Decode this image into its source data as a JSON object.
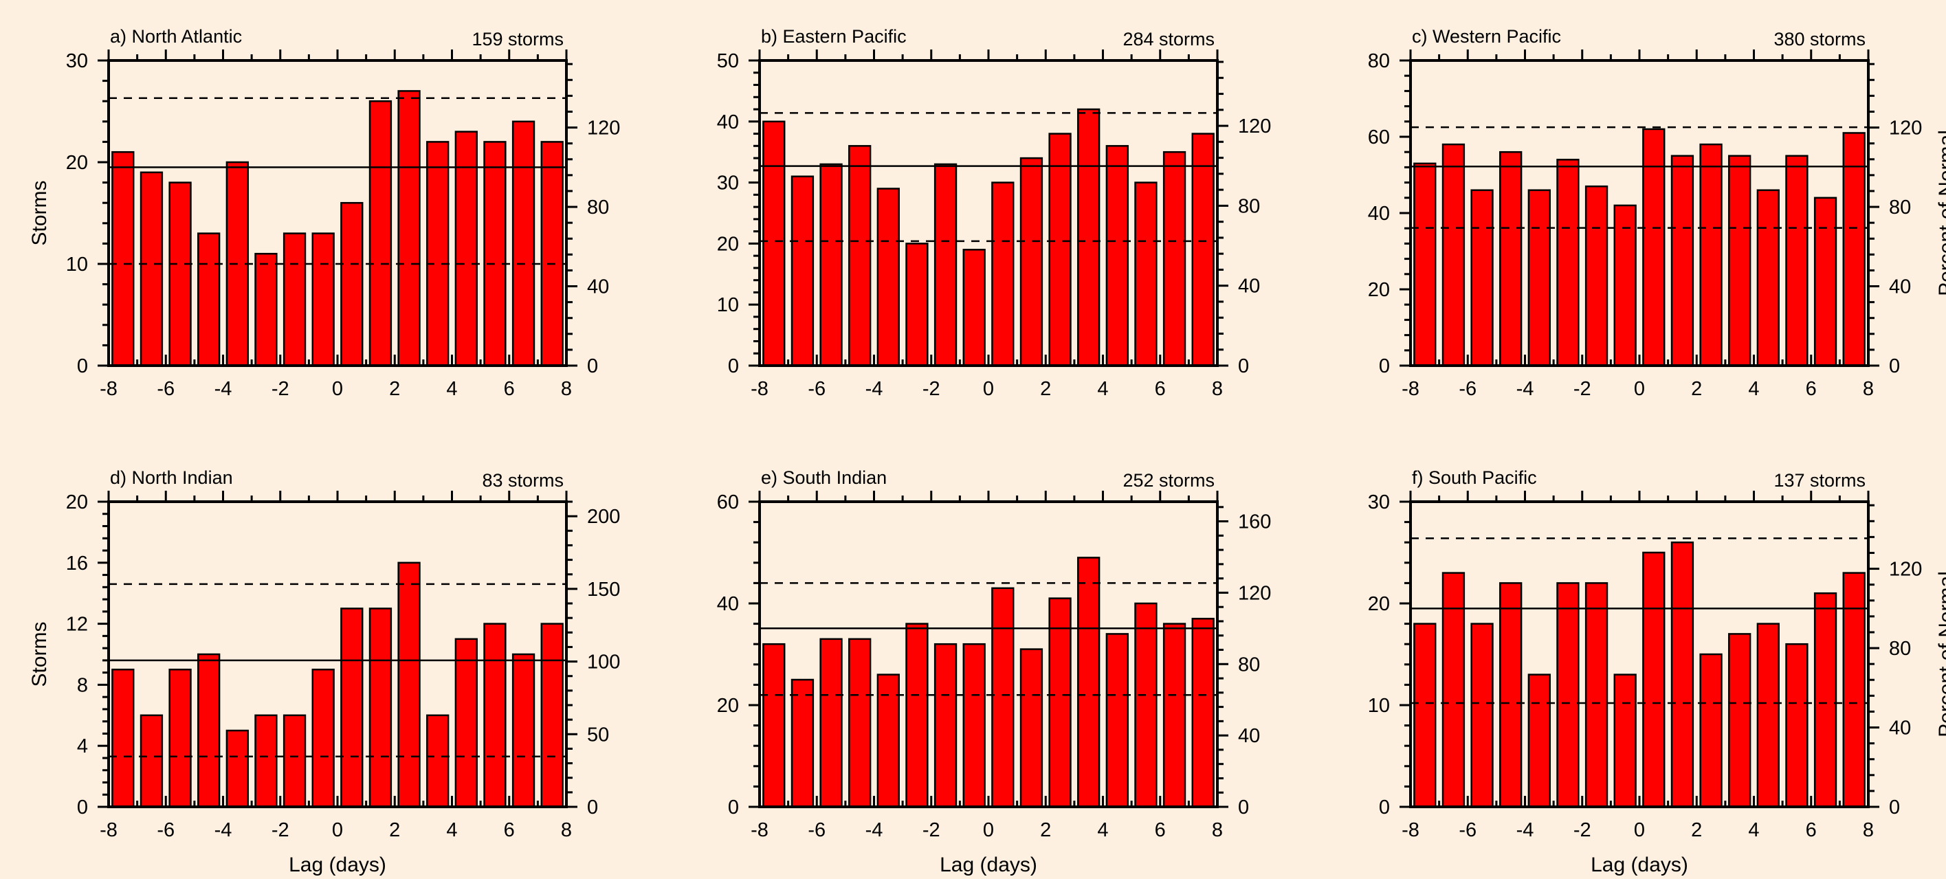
{
  "figure": {
    "xlabel": "Lag (days)",
    "ylabel": "Storms",
    "right_ylabel": "Percent of Normal",
    "bar_color": "#ff0000",
    "background": "#fdf0e0"
  },
  "chart_data": [
    {
      "type": "bar",
      "title": "a) North Atlantic",
      "count_label": "159 storms",
      "xlabel": "",
      "ylabel": "Storms",
      "x": [
        -7.5,
        -6.5,
        -5.5,
        -4.5,
        -3.5,
        -2.5,
        -1.5,
        -0.5,
        0.5,
        1.5,
        2.5,
        3.5,
        4.5,
        5.5,
        6.5,
        7.5
      ],
      "values": [
        21,
        19,
        18,
        13,
        20,
        11,
        13,
        13,
        16,
        26,
        27,
        22,
        23,
        22,
        24,
        22
      ],
      "xlim": [
        -8,
        8
      ],
      "ylim": [
        0,
        30
      ],
      "xticks": [
        -8,
        -6,
        -4,
        -2,
        0,
        2,
        4,
        6,
        8
      ],
      "yticks": [
        0,
        10,
        20,
        30
      ],
      "right_ylim": [
        0,
        153.8
      ],
      "right_yticks": [
        0,
        40,
        80,
        120
      ],
      "mean_line": 19.5,
      "dashed_lines": [
        10,
        26.3
      ]
    },
    {
      "type": "bar",
      "title": "b) Eastern Pacific",
      "count_label": "284 storms",
      "xlabel": "",
      "ylabel": "",
      "x": [
        -7.5,
        -6.5,
        -5.5,
        -4.5,
        -3.5,
        -2.5,
        -1.5,
        -0.5,
        0.5,
        1.5,
        2.5,
        3.5,
        4.5,
        5.5,
        6.5,
        7.5
      ],
      "values": [
        40,
        31,
        33,
        36,
        29,
        20,
        33,
        19,
        30,
        34,
        38,
        42,
        36,
        30,
        35,
        38
      ],
      "xlim": [
        -8,
        8
      ],
      "ylim": [
        0,
        50
      ],
      "xticks": [
        -8,
        -6,
        -4,
        -2,
        0,
        2,
        4,
        6,
        8
      ],
      "yticks": [
        0,
        10,
        20,
        30,
        40,
        50
      ],
      "right_ylim": [
        0,
        152.7
      ],
      "right_yticks": [
        0,
        40,
        80,
        120
      ],
      "mean_line": 32.7,
      "dashed_lines": [
        20.4,
        41.4
      ]
    },
    {
      "type": "bar",
      "title": "c) Western Pacific",
      "count_label": "380 storms",
      "xlabel": "",
      "ylabel": "",
      "x": [
        -7.5,
        -6.5,
        -5.5,
        -4.5,
        -3.5,
        -2.5,
        -1.5,
        -0.5,
        0.5,
        1.5,
        2.5,
        3.5,
        4.5,
        5.5,
        6.5,
        7.5
      ],
      "values": [
        53,
        58,
        46,
        56,
        46,
        54,
        47,
        42,
        62,
        55,
        58,
        55,
        46,
        55,
        44,
        61
      ],
      "xlim": [
        -8,
        8
      ],
      "ylim": [
        0,
        80
      ],
      "xticks": [
        -8,
        -6,
        -4,
        -2,
        0,
        2,
        4,
        6,
        8
      ],
      "yticks": [
        0,
        20,
        40,
        60,
        80
      ],
      "right_ylim": [
        0,
        153.8
      ],
      "right_yticks": [
        0,
        40,
        80,
        120
      ],
      "mean_line": 52.2,
      "dashed_lines": [
        36.1,
        62.5
      ]
    },
    {
      "type": "bar",
      "title": "d) North Indian",
      "count_label": "83 storms",
      "xlabel": "Lag (days)",
      "ylabel": "Storms",
      "x": [
        -7.5,
        -6.5,
        -5.5,
        -4.5,
        -3.5,
        -2.5,
        -1.5,
        -0.5,
        0.5,
        1.5,
        2.5,
        3.5,
        4.5,
        5.5,
        6.5,
        7.5
      ],
      "values": [
        9,
        6,
        9,
        10,
        5,
        6,
        6,
        9,
        13,
        13,
        16,
        6,
        11,
        12,
        10,
        12
      ],
      "xlim": [
        -8,
        8
      ],
      "ylim": [
        0,
        20
      ],
      "xticks": [
        -8,
        -6,
        -4,
        -2,
        0,
        2,
        4,
        6,
        8
      ],
      "yticks": [
        0,
        4,
        8,
        12,
        16,
        20
      ],
      "right_ylim": [
        0,
        210
      ],
      "right_yticks": [
        0,
        50,
        100,
        150,
        200
      ],
      "mean_line": 9.6,
      "dashed_lines": [
        3.3,
        14.6
      ]
    },
    {
      "type": "bar",
      "title": "e) South Indian",
      "count_label": "252 storms",
      "xlabel": "Lag (days)",
      "ylabel": "",
      "x": [
        -7.5,
        -6.5,
        -5.5,
        -4.5,
        -3.5,
        -2.5,
        -1.5,
        -0.5,
        0.5,
        1.5,
        2.5,
        3.5,
        4.5,
        5.5,
        6.5,
        7.5
      ],
      "values": [
        32,
        25,
        33,
        33,
        26,
        36,
        32,
        32,
        43,
        31,
        41,
        49,
        34,
        40,
        36,
        37
      ],
      "xlim": [
        -8,
        8
      ],
      "ylim": [
        0,
        60
      ],
      "xticks": [
        -8,
        -6,
        -4,
        -2,
        0,
        2,
        4,
        6,
        8
      ],
      "yticks": [
        0,
        20,
        40,
        60
      ],
      "right_ylim": [
        0,
        171
      ],
      "right_yticks": [
        0,
        40,
        80,
        120,
        160
      ],
      "mean_line": 35.1,
      "dashed_lines": [
        22,
        44
      ]
    },
    {
      "type": "bar",
      "title": "f) South Pacific",
      "count_label": "137 storms",
      "xlabel": "Lag (days)",
      "ylabel": "",
      "x": [
        -7.5,
        -6.5,
        -5.5,
        -4.5,
        -3.5,
        -2.5,
        -1.5,
        -0.5,
        0.5,
        1.5,
        2.5,
        3.5,
        4.5,
        5.5,
        6.5,
        7.5
      ],
      "values": [
        18,
        23,
        18,
        22,
        13,
        22,
        22,
        13,
        25,
        26,
        15,
        17,
        18,
        16,
        21,
        23
      ],
      "xlim": [
        -8,
        8
      ],
      "ylim": [
        0,
        30
      ],
      "xticks": [
        -8,
        -6,
        -4,
        -2,
        0,
        2,
        4,
        6,
        8
      ],
      "yticks": [
        0,
        10,
        20,
        30
      ],
      "right_ylim": [
        0,
        153.8
      ],
      "right_yticks": [
        0,
        40,
        80,
        120
      ],
      "mean_line": 19.5,
      "dashed_lines": [
        10.2,
        26.4
      ]
    }
  ]
}
